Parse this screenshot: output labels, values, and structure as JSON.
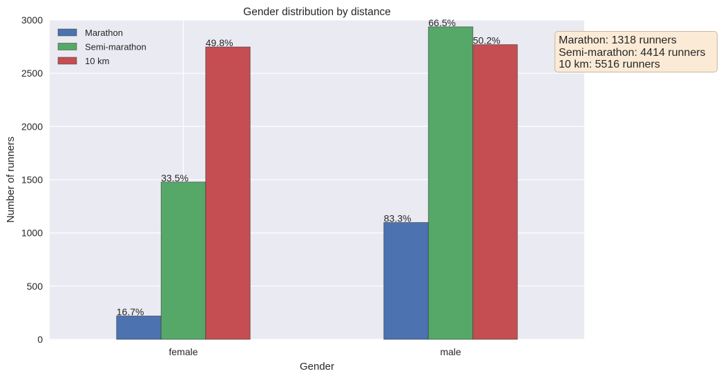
{
  "chart_data": {
    "type": "bar",
    "title": "Gender distribution by distance",
    "xlabel": "Gender",
    "ylabel": "Number of runners",
    "categories": [
      "female",
      "male"
    ],
    "ylim": [
      0,
      3000
    ],
    "yticks": [
      0,
      500,
      1000,
      1500,
      2000,
      2500,
      3000
    ],
    "grid": true,
    "legend_position": "top-left",
    "series": [
      {
        "name": "Marathon",
        "color": "#4c72b0",
        "values": [
          220,
          1098
        ],
        "labels": [
          "16.7%",
          "83.3%"
        ]
      },
      {
        "name": "Semi-marathon",
        "color": "#55a868",
        "values": [
          1478,
          2936
        ],
        "labels": [
          "33.5%",
          "66.5%"
        ]
      },
      {
        "name": "10 km",
        "color": "#c44e52",
        "values": [
          2747,
          2769
        ],
        "labels": [
          "49.8%",
          "50.2%"
        ]
      }
    ],
    "annotation": {
      "lines": [
        "Marathon: 1318 runners",
        "Semi-marathon: 4414 runners",
        "10 km: 5516 runners"
      ]
    }
  }
}
